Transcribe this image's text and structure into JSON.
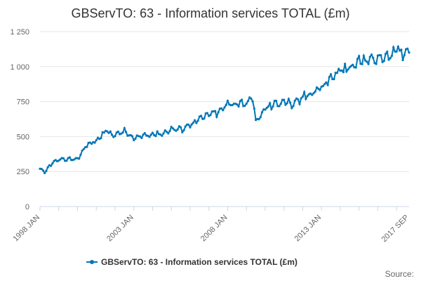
{
  "chart_data": {
    "type": "line",
    "title": "GBServTO: 63 - Information services TOTAL (£m)",
    "xlabel": "",
    "ylabel": "",
    "ylim": [
      0,
      1250
    ],
    "yticks": [
      {
        "value": 0,
        "label": "0"
      },
      {
        "value": 250,
        "label": "250"
      },
      {
        "value": 500,
        "label": "500"
      },
      {
        "value": 750,
        "label": "750"
      },
      {
        "value": 1000,
        "label": "1 000"
      },
      {
        "value": 1250,
        "label": "1 250"
      }
    ],
    "xticks": [
      {
        "index": 0,
        "label": "1998 JAN"
      },
      {
        "index": 60,
        "label": "2003 JAN"
      },
      {
        "index": 120,
        "label": "2008 JAN"
      },
      {
        "index": 180,
        "label": "2013 JAN"
      },
      {
        "index": 236,
        "label": "2017 SEP"
      }
    ],
    "anchors": [
      [
        0,
        270
      ],
      [
        3,
        240
      ],
      [
        6,
        290
      ],
      [
        9,
        320
      ],
      [
        12,
        330
      ],
      [
        18,
        340
      ],
      [
        24,
        340
      ],
      [
        30,
        440
      ],
      [
        36,
        470
      ],
      [
        42,
        540
      ],
      [
        48,
        510
      ],
      [
        54,
        540
      ],
      [
        60,
        480
      ],
      [
        66,
        510
      ],
      [
        72,
        520
      ],
      [
        78,
        520
      ],
      [
        84,
        555
      ],
      [
        90,
        550
      ],
      [
        96,
        590
      ],
      [
        102,
        620
      ],
      [
        108,
        660
      ],
      [
        114,
        670
      ],
      [
        120,
        730
      ],
      [
        126,
        740
      ],
      [
        132,
        740
      ],
      [
        136,
        780
      ],
      [
        138,
        600
      ],
      [
        144,
        700
      ],
      [
        150,
        730
      ],
      [
        156,
        760
      ],
      [
        162,
        720
      ],
      [
        168,
        780
      ],
      [
        174,
        820
      ],
      [
        180,
        850
      ],
      [
        186,
        920
      ],
      [
        192,
        970
      ],
      [
        198,
        980
      ],
      [
        204,
        1040
      ],
      [
        210,
        1050
      ],
      [
        216,
        1060
      ],
      [
        222,
        1070
      ],
      [
        228,
        1110
      ],
      [
        232,
        1100
      ],
      [
        236,
        1120
      ]
    ],
    "series": [
      {
        "name": "GBServTO: 63 - Information services TOTAL (£m)",
        "color": "#0077b6",
        "n_points": 237
      }
    ]
  },
  "source_label": "Source:"
}
